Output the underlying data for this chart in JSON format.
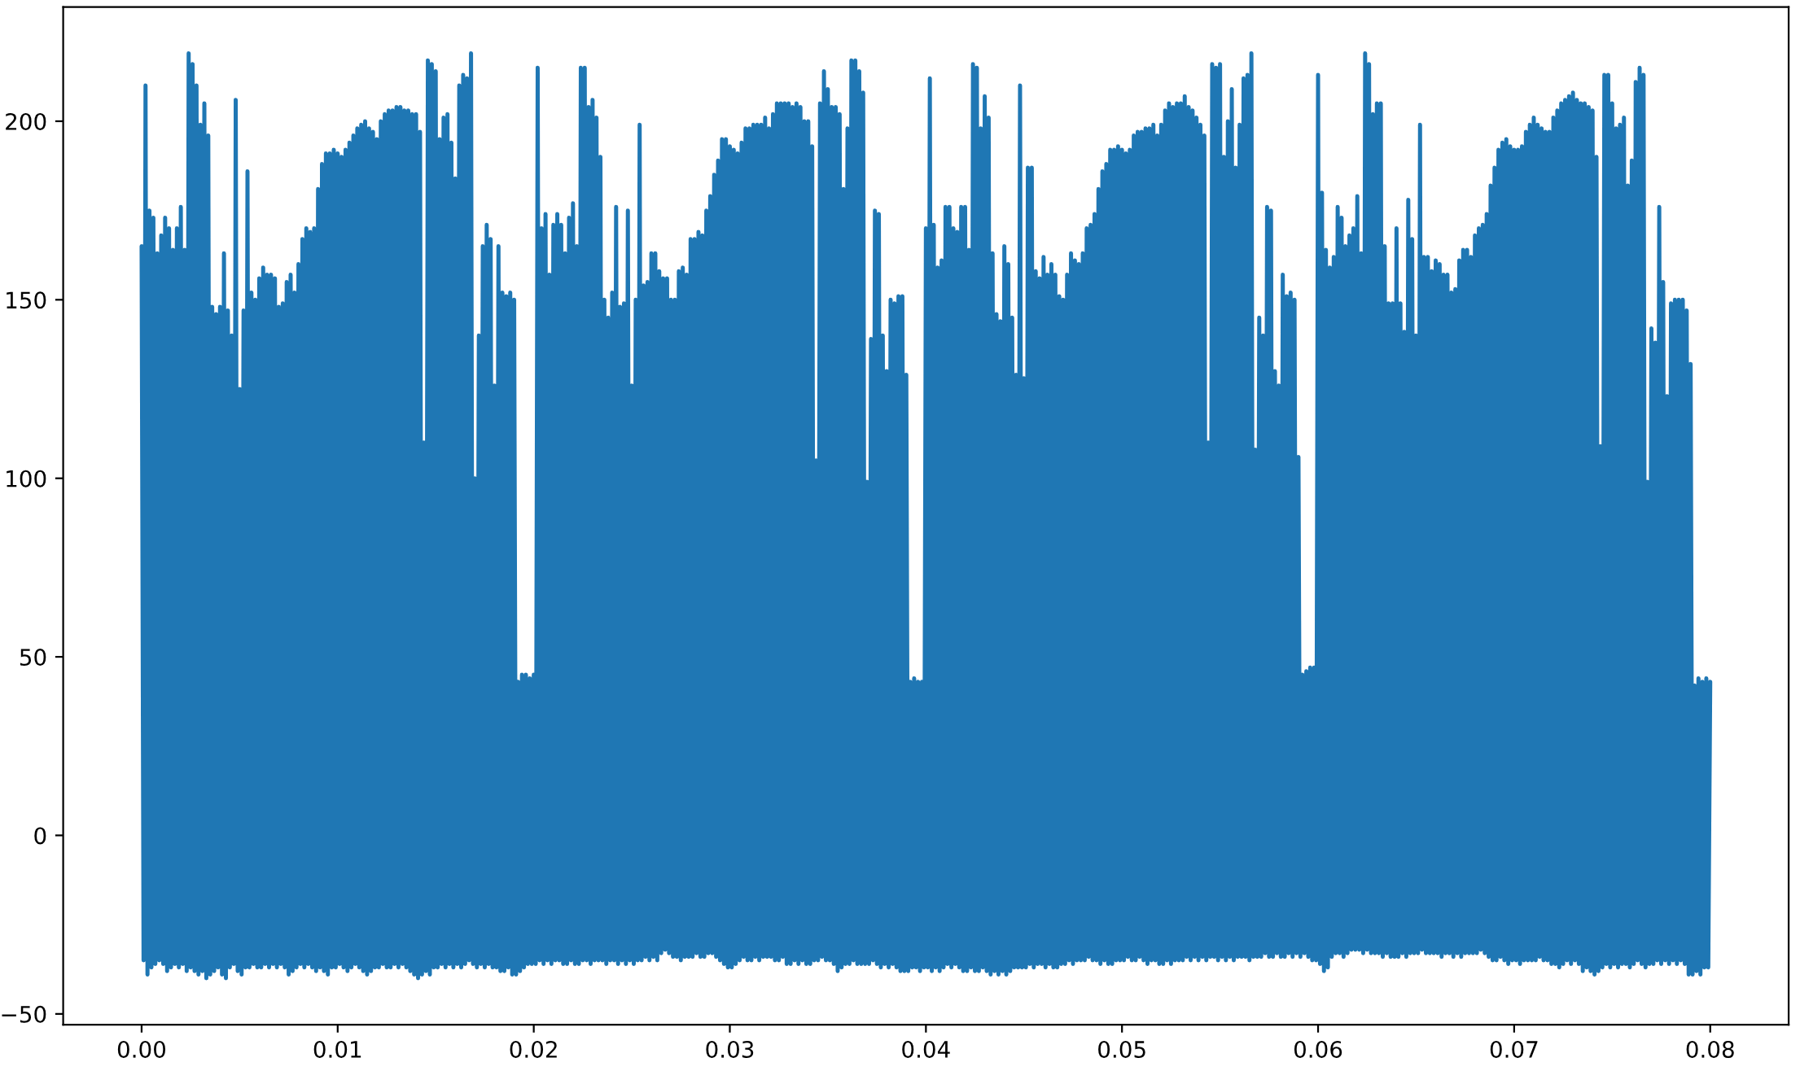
{
  "chart_data": {
    "type": "line",
    "xlim": [
      -0.004,
      0.084
    ],
    "ylim": [
      -53,
      232
    ],
    "xticks": [
      {
        "value": 0,
        "label": "0.00"
      },
      {
        "value": 0.01,
        "label": "0.01"
      },
      {
        "value": 0.02,
        "label": "0.02"
      },
      {
        "value": 0.03,
        "label": "0.03"
      },
      {
        "value": 0.04,
        "label": "0.04"
      },
      {
        "value": 0.05,
        "label": "0.05"
      },
      {
        "value": 0.06,
        "label": "0.06"
      },
      {
        "value": 0.07,
        "label": "0.07"
      },
      {
        "value": 0.08,
        "label": "0.08"
      }
    ],
    "yticks": [
      {
        "value": -50,
        "label": "−50"
      },
      0,
      50,
      100,
      150,
      200
    ],
    "series": [
      {
        "color": "#1f77b4",
        "x": [
          0,
          0.0001,
          0.0002,
          0.0003,
          0.0004,
          0.0005,
          0.0006,
          0.0007,
          0.0008,
          0.0009,
          0.001,
          0.0011,
          0.0012,
          0.0013,
          0.0014,
          0.0015,
          0.0016,
          0.0017,
          0.0018,
          0.0019,
          0.002,
          0.0021,
          0.0022,
          0.0023,
          0.0024,
          0.0025,
          0.0026,
          0.0027,
          0.0028,
          0.0029,
          0.003,
          0.0031,
          0.0032,
          0.0033,
          0.0034,
          0.0035,
          0.0036,
          0.0037,
          0.0038,
          0.0039,
          0.004,
          0.0041,
          0.0042,
          0.0043,
          0.0044,
          0.0045,
          0.0046,
          0.0047,
          0.0048,
          0.0049,
          0.005,
          0.0051,
          0.0052,
          0.0053,
          0.0054,
          0.0055,
          0.0056,
          0.0057,
          0.0058,
          0.0059,
          0.006,
          0.0061,
          0.0062,
          0.0063,
          0.0064,
          0.0065,
          0.0066,
          0.0067,
          0.0068,
          0.0069,
          0.007,
          0.0071,
          0.0072,
          0.0073,
          0.0074,
          0.0075,
          0.0076,
          0.0077,
          0.0078,
          0.0079,
          0.008,
          0.0081,
          0.0082,
          0.0083,
          0.0084,
          0.0085,
          0.0086,
          0.0087,
          0.0088,
          0.0089,
          0.009,
          0.0091,
          0.0092,
          0.0093,
          0.0094,
          0.0095,
          0.0096,
          0.0097,
          0.0098,
          0.0099,
          0.01,
          0.0101,
          0.0102,
          0.0103,
          0.0104,
          0.0105,
          0.0106,
          0.0107,
          0.0108,
          0.0109,
          0.011,
          0.0111,
          0.0112,
          0.0113,
          0.0114,
          0.0115,
          0.0116,
          0.0117,
          0.0118,
          0.0119,
          0.012,
          0.0121,
          0.0122,
          0.0123,
          0.0124,
          0.0125,
          0.0126,
          0.0127,
          0.0128,
          0.0129,
          0.013,
          0.0131,
          0.0132,
          0.0133,
          0.0134,
          0.0135,
          0.0136,
          0.0137,
          0.0138,
          0.0139,
          0.014,
          0.0141,
          0.0142,
          0.0143,
          0.0144,
          0.0145,
          0.0146,
          0.0147,
          0.0148,
          0.0149,
          0.015,
          0.0151,
          0.0152,
          0.0153,
          0.0154,
          0.0155,
          0.0156,
          0.0157,
          0.0158,
          0.0159,
          0.016,
          0.0161,
          0.0162,
          0.0163,
          0.0164,
          0.0165,
          0.0166,
          0.0167,
          0.0168,
          0.0169,
          0.017,
          0.0171,
          0.0172,
          0.0173,
          0.0174,
          0.0175,
          0.0176,
          0.0177,
          0.0178,
          0.0179,
          0.018,
          0.0181,
          0.0182,
          0.0183,
          0.0184,
          0.0185,
          0.0186,
          0.0187,
          0.0188,
          0.0189,
          0.019,
          0.0191,
          0.0192,
          0.0193,
          0.0194,
          0.0195,
          0.0196,
          0.0197,
          0.0198,
          0.0199,
          0.02,
          0.0201,
          0.0202,
          0.0203,
          0.0204,
          0.0205,
          0.0206,
          0.0207,
          0.0208,
          0.0209,
          0.021,
          0.0211,
          0.0212,
          0.0213,
          0.0214,
          0.0215,
          0.0216,
          0.0217,
          0.0218,
          0.0219,
          0.022,
          0.0221,
          0.0222,
          0.0223,
          0.0224,
          0.0225,
          0.0226,
          0.0227,
          0.0228,
          0.0229,
          0.023,
          0.0231,
          0.0232,
          0.0233,
          0.0234,
          0.0235,
          0.0236,
          0.0237,
          0.0238,
          0.0239,
          0.024,
          0.0241,
          0.0242,
          0.0243,
          0.0244,
          0.0245,
          0.0246,
          0.0247,
          0.0248,
          0.0249,
          0.025,
          0.0251,
          0.0252,
          0.0253,
          0.0254,
          0.0255,
          0.0256,
          0.0257,
          0.0258,
          0.0259,
          0.026,
          0.0261,
          0.0262,
          0.0263,
          0.0264,
          0.0265,
          0.0266,
          0.0267,
          0.0268,
          0.0269,
          0.027,
          0.0271,
          0.0272,
          0.0273,
          0.0274,
          0.0275,
          0.0276,
          0.0277,
          0.0278,
          0.0279,
          0.028,
          0.0281,
          0.0282,
          0.0283,
          0.0284,
          0.0285,
          0.0286,
          0.0287,
          0.0288,
          0.0289,
          0.029,
          0.0291,
          0.0292,
          0.0293,
          0.0294,
          0.0295,
          0.0296,
          0.0297,
          0.0298,
          0.0299,
          0.03,
          0.0301,
          0.0302,
          0.0303,
          0.0304,
          0.0305,
          0.0306,
          0.0307,
          0.0308,
          0.0309,
          0.031,
          0.0311,
          0.0312,
          0.0313,
          0.0314,
          0.0315,
          0.0316,
          0.0317,
          0.0318,
          0.0319,
          0.032,
          0.0321,
          0.0322,
          0.0323,
          0.0324,
          0.0325,
          0.0326,
          0.0327,
          0.0328,
          0.0329,
          0.033,
          0.0331,
          0.0332,
          0.0333,
          0.0334,
          0.0335,
          0.0336,
          0.0337,
          0.0338,
          0.0339,
          0.034,
          0.0341,
          0.0342,
          0.0343,
          0.0344,
          0.0345,
          0.0346,
          0.0347,
          0.0348,
          0.0349,
          0.035,
          0.0351,
          0.0352,
          0.0353,
          0.0354,
          0.0355,
          0.0356,
          0.0357,
          0.0358,
          0.0359,
          0.036,
          0.0361,
          0.0362,
          0.0363,
          0.0364,
          0.0365,
          0.0366,
          0.0367,
          0.0368,
          0.0369,
          0.037,
          0.0371,
          0.0372,
          0.0373,
          0.0374,
          0.0375,
          0.0376,
          0.0377,
          0.0378,
          0.0379,
          0.038,
          0.0381,
          0.0382,
          0.0383,
          0.0384,
          0.0385,
          0.0386,
          0.0387,
          0.0388,
          0.0389,
          0.039,
          0.0391,
          0.0392,
          0.0393,
          0.0394,
          0.0395,
          0.0396,
          0.0397,
          0.0398,
          0.0399,
          0.04,
          0.0401,
          0.0402,
          0.0403,
          0.0404,
          0.0405,
          0.0406,
          0.0407,
          0.0408,
          0.0409,
          0.041,
          0.0411,
          0.0412,
          0.0413,
          0.0414,
          0.0415,
          0.0416,
          0.0417,
          0.0418,
          0.0419,
          0.042,
          0.0421,
          0.0422,
          0.0423,
          0.0424,
          0.0425,
          0.0426,
          0.0427,
          0.0428,
          0.0429,
          0.043,
          0.0431,
          0.0432,
          0.0433,
          0.0434,
          0.0435,
          0.0436,
          0.0437,
          0.0438,
          0.0439,
          0.044,
          0.0441,
          0.0442,
          0.0443,
          0.0444,
          0.0445,
          0.0446,
          0.0447,
          0.0448,
          0.0449,
          0.045,
          0.0451,
          0.0452,
          0.0453,
          0.0454,
          0.0455,
          0.0456,
          0.0457,
          0.0458,
          0.0459,
          0.046,
          0.0461,
          0.0462,
          0.0463,
          0.0464,
          0.0465,
          0.0466,
          0.0467,
          0.0468,
          0.0469,
          0.047,
          0.0471,
          0.0472,
          0.0473,
          0.0474,
          0.0475,
          0.0476,
          0.0477,
          0.0478,
          0.0479,
          0.048,
          0.0481,
          0.0482,
          0.0483,
          0.0484,
          0.0485,
          0.0486,
          0.0487,
          0.0488,
          0.0489,
          0.049,
          0.0491,
          0.0492,
          0.0493,
          0.0494,
          0.0495,
          0.0496,
          0.0497,
          0.0498,
          0.0499,
          0.05,
          0.0501,
          0.0502,
          0.0503,
          0.0504,
          0.0505,
          0.0506,
          0.0507,
          0.0508,
          0.0509,
          0.051,
          0.0511,
          0.0512,
          0.0513,
          0.0514,
          0.0515,
          0.0516,
          0.0517,
          0.0518,
          0.0519,
          0.052,
          0.0521,
          0.0522,
          0.0523,
          0.0524,
          0.0525,
          0.0526,
          0.0527,
          0.0528,
          0.0529,
          0.053,
          0.0531,
          0.0532,
          0.0533,
          0.0534,
          0.0535,
          0.0536,
          0.0537,
          0.0538,
          0.0539,
          0.054,
          0.0541,
          0.0542,
          0.0543,
          0.0544,
          0.0545,
          0.0546,
          0.0547,
          0.0548,
          0.0549,
          0.055,
          0.0551,
          0.0552,
          0.0553,
          0.0554,
          0.0555,
          0.0556,
          0.0557,
          0.0558,
          0.0559,
          0.056,
          0.0561,
          0.0562,
          0.0563,
          0.0564,
          0.0565,
          0.0566,
          0.0567,
          0.0568,
          0.0569,
          0.057,
          0.0571,
          0.0572,
          0.0573,
          0.0574,
          0.0575,
          0.0576,
          0.0577,
          0.0578,
          0.0579,
          0.058,
          0.0581,
          0.0582,
          0.0583,
          0.0584,
          0.0585,
          0.0586,
          0.0587,
          0.0588,
          0.0589,
          0.059,
          0.0591,
          0.0592,
          0.0593,
          0.0594,
          0.0595,
          0.0596,
          0.0597,
          0.0598,
          0.0599,
          0.06,
          0.0601,
          0.0602,
          0.0603,
          0.0604,
          0.0605,
          0.0606,
          0.0607,
          0.0608,
          0.0609,
          0.061,
          0.0611,
          0.0612,
          0.0613,
          0.0614,
          0.0615,
          0.0616,
          0.0617,
          0.0618,
          0.0619,
          0.062,
          0.0621,
          0.0622,
          0.0623,
          0.0624,
          0.0625,
          0.0626,
          0.0627,
          0.0628,
          0.0629,
          0.063,
          0.0631,
          0.0632,
          0.0633,
          0.0634,
          0.0635,
          0.0636,
          0.0637,
          0.0638,
          0.0639,
          0.064,
          0.0641,
          0.0642,
          0.0643,
          0.0644,
          0.0645,
          0.0646,
          0.0647,
          0.0648,
          0.0649,
          0.065,
          0.0651,
          0.0652,
          0.0653,
          0.0654,
          0.0655,
          0.0656,
          0.0657,
          0.0658,
          0.0659,
          0.066,
          0.0661,
          0.0662,
          0.0663,
          0.0664,
          0.0665,
          0.0666,
          0.0667,
          0.0668,
          0.0669,
          0.067,
          0.0671,
          0.0672,
          0.0673,
          0.0674,
          0.0675,
          0.0676,
          0.0677,
          0.0678,
          0.0679,
          0.068,
          0.0681,
          0.0682,
          0.0683,
          0.0684,
          0.0685,
          0.0686,
          0.0687,
          0.0688,
          0.0689,
          0.069,
          0.0691,
          0.0692,
          0.0693,
          0.0694,
          0.0695,
          0.0696,
          0.0697,
          0.0698,
          0.0699,
          0.07,
          0.0701,
          0.0702,
          0.0703,
          0.0704,
          0.0705,
          0.0706,
          0.0707,
          0.0708,
          0.0709,
          0.071,
          0.0711,
          0.0712,
          0.0713,
          0.0714,
          0.0715,
          0.0716,
          0.0717,
          0.0718,
          0.0719,
          0.072,
          0.0721,
          0.0722,
          0.0723,
          0.0724,
          0.0725,
          0.0726,
          0.0727,
          0.0728,
          0.0729,
          0.073,
          0.0731,
          0.0732,
          0.0733,
          0.0734,
          0.0735,
          0.0736,
          0.0737,
          0.0738,
          0.0739,
          0.074,
          0.0741,
          0.0742,
          0.0743,
          0.0744,
          0.0745,
          0.0746,
          0.0747,
          0.0748,
          0.0749,
          0.075,
          0.0751,
          0.0752,
          0.0753,
          0.0754,
          0.0755,
          0.0756,
          0.0757,
          0.0758,
          0.0759,
          0.076,
          0.0761,
          0.0762,
          0.0763,
          0.0764,
          0.0765,
          0.0766,
          0.0767,
          0.0768,
          0.0769,
          0.077,
          0.0771,
          0.0772,
          0.0773,
          0.0774,
          0.0775,
          0.0776,
          0.0777,
          0.0778,
          0.0779,
          0.078,
          0.0781,
          0.0782,
          0.0783,
          0.0784,
          0.0785,
          0.0786,
          0.0787,
          0.0788,
          0.0789,
          0.079,
          0.0791,
          0.0792,
          0.0793,
          0.0794,
          0.0795,
          0.0796,
          0.0797,
          0.0798,
          0.0799,
          0.08
        ],
        "values": [
          165,
          -35,
          210,
          -39,
          175,
          -37,
          173,
          -36,
          163,
          -35,
          168,
          -36,
          173,
          -38,
          170,
          -37,
          164,
          -36,
          170,
          -37,
          176,
          -36,
          164,
          -38,
          219,
          -37,
          216,
          -38,
          210,
          -39,
          199,
          -38,
          205,
          -40,
          196,
          -39,
          148,
          -38,
          146,
          -37,
          148,
          -39,
          163,
          -40,
          147,
          -37,
          140,
          -36,
          206,
          -38,
          125,
          -39,
          147,
          -37,
          186,
          -37,
          152,
          -36,
          150,
          -37,
          156,
          -37,
          159,
          -36,
          157,
          -37,
          157,
          -36,
          156,
          -37,
          148,
          -36,
          149,
          -37,
          155,
          -39,
          157,
          -38,
          152,
          -37,
          160,
          -36,
          167,
          -37,
          170,
          -36,
          169,
          -37,
          170,
          -38,
          181,
          -37,
          188,
          -38,
          191,
          -39,
          191,
          -37,
          192,
          -37,
          191,
          -36,
          190,
          -37,
          192,
          -38,
          194,
          -37,
          196,
          -36,
          198,
          -37,
          199,
          -38,
          200,
          -39,
          198,
          -38,
          197,
          -37,
          195,
          -37,
          200,
          -36,
          202,
          -37,
          203,
          -37,
          203,
          -36,
          204,
          -37,
          204,
          -36,
          203,
          -37,
          203,
          -38,
          202,
          -39,
          202,
          -40,
          197,
          -39,
          110,
          -38,
          217,
          -39,
          216,
          -37,
          214,
          -37,
          195,
          -36,
          201,
          -37,
          202,
          -36,
          194,
          -37,
          184,
          -36,
          210,
          -37,
          213,
          -36,
          212,
          -35,
          219,
          -36,
          100,
          -37,
          140,
          -36,
          165,
          -37,
          171,
          -36,
          167,
          -37,
          126,
          -37,
          165,
          -38,
          152,
          -38,
          151,
          -37,
          152,
          -39,
          150,
          -39,
          43,
          -38,
          45,
          -37,
          45,
          -36,
          44,
          -36,
          45,
          -36,
          215,
          -35,
          170,
          -36,
          174,
          -35,
          157,
          -36,
          171,
          -35,
          174,
          -35,
          171,
          -36,
          163,
          -36,
          173,
          -35,
          177,
          -36,
          165,
          -36,
          215,
          -35,
          215,
          -35,
          204,
          -36,
          206,
          -35,
          201,
          -35,
          190,
          -35,
          150,
          -36,
          145,
          -35,
          152,
          -35,
          176,
          -36,
          148,
          -35,
          149,
          -36,
          175,
          -35,
          126,
          -36,
          150,
          -35,
          199,
          -35,
          154,
          -34,
          155,
          -35,
          163,
          -34,
          163,
          -35,
          158,
          -33,
          156,
          -32,
          156,
          -33,
          150,
          -34,
          150,
          -34,
          158,
          -35,
          159,
          -34,
          157,
          -34,
          167,
          -34,
          167,
          -33,
          169,
          -34,
          168,
          -34,
          175,
          -33,
          179,
          -33,
          185,
          -34,
          189,
          -35,
          195,
          -36,
          195,
          -37,
          193,
          -37,
          192,
          -36,
          191,
          -35,
          194,
          -34,
          198,
          -35,
          198,
          -35,
          199,
          -34,
          199,
          -35,
          199,
          -34,
          201,
          -34,
          198,
          -34,
          202,
          -35,
          205,
          -35,
          205,
          -34,
          205,
          -36,
          205,
          -36,
          204,
          -35,
          205,
          -36,
          204,
          -35,
          200,
          -36,
          200,
          -36,
          193,
          -35,
          105,
          -35,
          205,
          -34,
          214,
          -35,
          209,
          -35,
          204,
          -36,
          204,
          -38,
          202,
          -37,
          181,
          -36,
          198,
          -36,
          217,
          -35,
          217,
          -36,
          214,
          -36,
          208,
          -36,
          99,
          -36,
          139,
          -35,
          175,
          -36,
          174,
          -37,
          140,
          -36,
          130,
          -37,
          150,
          -36,
          149,
          -37,
          151,
          -38,
          151,
          -38,
          129,
          -38,
          43,
          -37,
          44,
          -37,
          43,
          -38,
          43,
          -37,
          170,
          -37,
          212,
          -38,
          171,
          -37,
          159,
          -38,
          161,
          -37,
          176,
          -36,
          176,
          -37,
          170,
          -36,
          169,
          -37,
          176,
          -38,
          176,
          -38,
          164,
          -37,
          216,
          -38,
          215,
          -38,
          198,
          -37,
          207,
          -38,
          201,
          -39,
          163,
          -38,
          146,
          -39,
          144,
          -38,
          165,
          -39,
          160,
          -38,
          145,
          -37,
          129,
          -37,
          210,
          -37,
          128,
          -37,
          187,
          -36,
          187,
          -37,
          158,
          -36,
          156,
          -36,
          162,
          -37,
          157,
          -36,
          160,
          -37,
          157,
          -37,
          151,
          -36,
          150,
          -36,
          157,
          -35,
          163,
          -36,
          161,
          -35,
          160,
          -35,
          163,
          -35,
          170,
          -34,
          171,
          -35,
          174,
          -35,
          181,
          -36,
          186,
          -35,
          188,
          -36,
          192,
          -36,
          192,
          -35,
          193,
          -35,
          192,
          -35,
          191,
          -34,
          192,
          -35,
          196,
          -35,
          197,
          -34,
          197,
          -35,
          198,
          -36,
          198,
          -35,
          199,
          -35,
          196,
          -36,
          199,
          -36,
          203,
          -35,
          205,
          -36,
          204,
          -35,
          205,
          -35,
          205,
          -35,
          207,
          -34,
          204,
          -35,
          203,
          -34,
          201,
          -35,
          199,
          -34,
          196,
          -35,
          110,
          -34,
          216,
          -34,
          215,
          -35,
          216,
          -34,
          190,
          -35,
          200,
          -34,
          209,
          -35,
          187,
          -34,
          199,
          -34,
          212,
          -34,
          213,
          -35,
          219,
          -34,
          108,
          -34,
          145,
          -34,
          140,
          -33,
          176,
          -34,
          175,
          -34,
          130,
          -33,
          126,
          -34,
          157,
          -34,
          151,
          -33,
          152,
          -34,
          150,
          -33,
          106,
          -34,
          45,
          -33,
          46,
          -34,
          47,
          -35,
          47,
          -35,
          213,
          -36,
          180,
          -38,
          164,
          -37,
          159,
          -34,
          162,
          -33,
          176,
          -33,
          173,
          -34,
          165,
          -33,
          168,
          -32,
          170,
          -32,
          179,
          -32,
          163,
          -33,
          219,
          -32,
          216,
          -33,
          202,
          -33,
          205,
          -33,
          205,
          -34,
          165,
          -33,
          149,
          -34,
          149,
          -34,
          170,
          -34,
          149,
          -33,
          141,
          -34,
          178,
          -33,
          167,
          -33,
          140,
          -33,
          199,
          -32,
          162,
          -33,
          162,
          -33,
          158,
          -33,
          161,
          -33,
          160,
          -34,
          157,
          -33,
          157,
          -33,
          152,
          -34,
          153,
          -33,
          161,
          -34,
          164,
          -33,
          164,
          -33,
          162,
          -33,
          168,
          -33,
          170,
          -32,
          171,
          -33,
          174,
          -34,
          182,
          -35,
          187,
          -35,
          192,
          -34,
          194,
          -35,
          195,
          -36,
          193,
          -35,
          192,
          -35,
          192,
          -36,
          193,
          -35,
          197,
          -35,
          199,
          -35,
          201,
          -35,
          199,
          -34,
          198,
          -35,
          197,
          -35,
          197,
          -36,
          201,
          -36,
          203,
          -37,
          205,
          -36,
          206,
          -35,
          207,
          -36,
          208,
          -35,
          206,
          -36,
          205,
          -38,
          205,
          -37,
          204,
          -38,
          203,
          -39,
          190,
          -38,
          109,
          -37,
          213,
          -36,
          213,
          -37,
          205,
          -36,
          198,
          -37,
          199,
          -36,
          201,
          -36,
          182,
          -37,
          189,
          -36,
          211,
          -35,
          215,
          -36,
          213,
          -37,
          99,
          -36,
          142,
          -36,
          138,
          -35,
          176,
          -36,
          155,
          -35,
          123,
          -36,
          149,
          -35,
          150,
          -36,
          150,
          -35,
          150,
          -36,
          147,
          -39,
          132,
          -39,
          42,
          -38,
          44,
          -39,
          43,
          -37,
          44,
          -37,
          43
        ]
      }
    ]
  }
}
